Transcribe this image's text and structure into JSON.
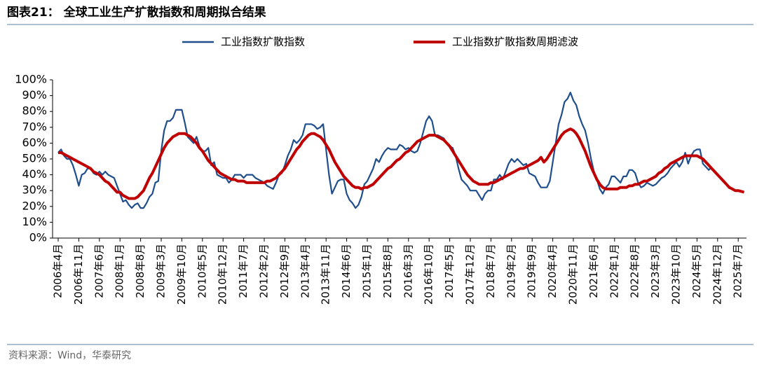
{
  "chart_data": {
    "type": "line",
    "title": "图表21：  全球工业生产扩散指数和周期拟合结果",
    "source": "资料来源：Wind，华泰研究",
    "categories": [
      "2006年4月",
      null,
      null,
      null,
      null,
      null,
      null,
      "2006年11月",
      null,
      null,
      null,
      null,
      null,
      null,
      "2007年6月",
      null,
      null,
      null,
      null,
      null,
      null,
      "2008年1月",
      null,
      null,
      null,
      null,
      null,
      null,
      "2008年8月",
      null,
      null,
      null,
      null,
      null,
      null,
      "2009年3月",
      null,
      null,
      null,
      null,
      null,
      null,
      "2009年10月",
      null,
      null,
      null,
      null,
      null,
      null,
      "2010年5月",
      null,
      null,
      null,
      null,
      null,
      null,
      "2010年12月",
      null,
      null,
      null,
      null,
      null,
      null,
      "2011年7月",
      null,
      null,
      null,
      null,
      null,
      null,
      "2012年2月",
      null,
      null,
      null,
      null,
      null,
      null,
      "2012年9月",
      null,
      null,
      null,
      null,
      null,
      null,
      "2013年4月",
      null,
      null,
      null,
      null,
      null,
      null,
      "2013年11月",
      null,
      null,
      null,
      null,
      null,
      null,
      "2014年6月",
      null,
      null,
      null,
      null,
      null,
      null,
      "2015年1月",
      null,
      null,
      null,
      null,
      null,
      null,
      "2015年8月",
      null,
      null,
      null,
      null,
      null,
      null,
      "2016年3月",
      null,
      null,
      null,
      null,
      null,
      null,
      "2016年10月",
      null,
      null,
      null,
      null,
      null,
      null,
      "2017年5月",
      null,
      null,
      null,
      null,
      null,
      null,
      "2017年12月",
      null,
      null,
      null,
      null,
      null,
      null,
      "2018年7月",
      null,
      null,
      null,
      null,
      null,
      null,
      "2019年2月",
      null,
      null,
      null,
      null,
      null,
      null,
      "2019年9月",
      null,
      null,
      null,
      null,
      null,
      null,
      "2020年4月",
      null,
      null,
      null,
      null,
      null,
      null,
      "2020年11月",
      null,
      null,
      null,
      null,
      null,
      null,
      "2021年6月",
      null,
      null,
      null,
      null,
      null,
      null,
      "2022年1月",
      null,
      null,
      null,
      null,
      null,
      null,
      "2022年8月",
      null,
      null,
      null,
      null,
      null,
      null,
      "2023年3月",
      null,
      null,
      null,
      null,
      null,
      null,
      "2023年10月",
      null,
      null,
      null,
      null,
      null,
      null,
      "2024年5月",
      null,
      null,
      null,
      null,
      null,
      null,
      "2024年12月",
      null,
      null,
      null,
      null,
      null,
      null,
      "2025年7月",
      null,
      null
    ],
    "series": [
      {
        "name": "工业指数扩散指数",
        "color": "#1f4e8c",
        "values": [
          54,
          56,
          52,
          50,
          50,
          46,
          40,
          33,
          40,
          41,
          44,
          44,
          41,
          40,
          42,
          40,
          42,
          40,
          39,
          38,
          33,
          28,
          23,
          24,
          21,
          19,
          21,
          22,
          19,
          19,
          22,
          26,
          28,
          35,
          36,
          55,
          68,
          74,
          74,
          76,
          81,
          81,
          81,
          73,
          64,
          62,
          60,
          64,
          58,
          55,
          55,
          57,
          46,
          48,
          40,
          39,
          38,
          38,
          35,
          37,
          40,
          40,
          40,
          38,
          40,
          40,
          40,
          38,
          37,
          36,
          35,
          33,
          32,
          31,
          35,
          40,
          41,
          46,
          52,
          56,
          62,
          60,
          62,
          65,
          72,
          72,
          72,
          71,
          69,
          70,
          72,
          56,
          40,
          28,
          32,
          36,
          37,
          37,
          28,
          24,
          22,
          19,
          21,
          26,
          34,
          36,
          40,
          44,
          50,
          48,
          52,
          55,
          57,
          56,
          56,
          56,
          59,
          58,
          56,
          57,
          55,
          54,
          55,
          60,
          67,
          74,
          77,
          74,
          65,
          65,
          64,
          63,
          60,
          58,
          57,
          52,
          44,
          37,
          35,
          33,
          30,
          30,
          30,
          27,
          24,
          28,
          30,
          30,
          37,
          37,
          40,
          37,
          42,
          47,
          50,
          48,
          50,
          48,
          46,
          47,
          41,
          40,
          39,
          35,
          32,
          32,
          32,
          36,
          48,
          60,
          72,
          78,
          86,
          88,
          92,
          87,
          84,
          77,
          72,
          68,
          60,
          50,
          42,
          37,
          31,
          28,
          32,
          34,
          39,
          39,
          37,
          35,
          39,
          39,
          43,
          43,
          41,
          35,
          32,
          33,
          35,
          34,
          33,
          34,
          36,
          38,
          39,
          41,
          44,
          46,
          48,
          45,
          48,
          54,
          47,
          52,
          55,
          56,
          56,
          47,
          45,
          43,
          45,
          null,
          null,
          null,
          null,
          null,
          null,
          null,
          null,
          null,
          null,
          null
        ]
      },
      {
        "name": "工业指数扩散指数周期滤波",
        "color": "#c00000",
        "values": [
          54,
          54,
          53,
          52,
          51,
          50,
          49,
          48,
          47,
          46,
          45,
          44,
          42,
          41,
          40,
          38,
          36,
          35,
          33,
          31,
          29,
          29,
          27,
          26,
          25,
          25,
          25,
          26,
          28,
          30,
          34,
          38,
          41,
          45,
          49,
          53,
          57,
          60,
          62,
          64,
          65,
          66,
          66,
          66,
          65,
          64,
          62,
          60,
          57,
          55,
          52,
          49,
          47,
          45,
          43,
          41,
          40,
          39,
          38,
          37,
          37,
          36,
          36,
          36,
          35,
          35,
          35,
          35,
          35,
          35,
          35,
          36,
          36,
          37,
          38,
          40,
          42,
          44,
          47,
          50,
          53,
          56,
          58,
          61,
          63,
          65,
          66,
          66,
          65,
          64,
          62,
          59,
          56,
          52,
          48,
          45,
          42,
          39,
          37,
          35,
          33,
          32,
          32,
          31,
          32,
          32,
          33,
          34,
          36,
          38,
          40,
          42,
          44,
          45,
          47,
          49,
          50,
          52,
          54,
          55,
          57,
          59,
          61,
          62,
          63,
          64,
          65,
          65,
          65,
          64,
          63,
          62,
          60,
          58,
          55,
          52,
          49,
          46,
          43,
          40,
          38,
          36,
          35,
          34,
          34,
          34,
          34,
          35,
          35,
          36,
          37,
          38,
          39,
          40,
          41,
          42,
          43,
          44,
          44,
          45,
          46,
          47,
          48,
          49,
          51,
          48,
          50,
          53,
          56,
          59,
          62,
          65,
          67,
          68,
          69,
          68,
          66,
          63,
          59,
          55,
          50,
          45,
          41,
          37,
          34,
          32,
          31,
          31,
          31,
          31,
          31,
          32,
          32,
          32,
          33,
          33,
          34,
          34,
          35,
          36,
          36,
          37,
          38,
          39,
          41,
          42,
          44,
          45,
          47,
          48,
          49,
          50,
          51,
          52,
          52,
          52,
          52,
          52,
          51,
          50,
          48,
          46,
          44,
          42,
          40,
          38,
          36,
          34,
          32,
          31,
          30,
          30,
          29.5,
          29
        ]
      }
    ],
    "ylim": [
      0,
      100
    ],
    "yticks": [
      {
        "value": 0,
        "label": "0%"
      },
      {
        "value": 10,
        "label": "10%"
      },
      {
        "value": 20,
        "label": "20%"
      },
      {
        "value": 30,
        "label": "30%"
      },
      {
        "value": 40,
        "label": "40%"
      },
      {
        "value": 50,
        "label": "50%"
      },
      {
        "value": 60,
        "label": "60%"
      },
      {
        "value": 70,
        "label": "70%"
      },
      {
        "value": 80,
        "label": "80%"
      },
      {
        "value": 90,
        "label": "90%"
      },
      {
        "value": 100,
        "label": "100%"
      }
    ],
    "grid": false
  }
}
